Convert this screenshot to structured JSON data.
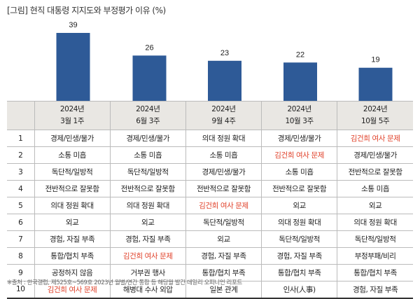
{
  "title": "[그림] 현직 대통령 지지도와 부정평가 이유 (%)",
  "chart_data": {
    "type": "bar",
    "title": "[그림] 현직 대통령 지지도와 부정평가 이유 (%)",
    "categories": [
      "2024년 3월 1주",
      "2024년 6월 3주",
      "2024년 9월 4주",
      "2024년 10월 3주",
      "2024년 10월 5주"
    ],
    "values": [
      39,
      26,
      23,
      22,
      19
    ],
    "color": "#2e5a97"
  },
  "table": {
    "headers": [
      {
        "year": "2024년",
        "week": "3월 1주"
      },
      {
        "year": "2024년",
        "week": "6월 3주"
      },
      {
        "year": "2024년",
        "week": "9월 4주"
      },
      {
        "year": "2024년",
        "week": "10월 3주"
      },
      {
        "year": "2024년",
        "week": "10월 5주"
      }
    ],
    "highlight_color": "#e0412a",
    "highlight_text": "김건희 여사 문제",
    "rows": [
      {
        "rank": "1",
        "cells": [
          "경제/민생/물가",
          "경제/민생/물가",
          "의대 정원 확대",
          "경제/민생/물가",
          "김건희 여사 문제"
        ]
      },
      {
        "rank": "2",
        "cells": [
          "소통 미흡",
          "소통 미흡",
          "소통 미흡",
          "김건희 여사 문제",
          "경제/민생/물가"
        ]
      },
      {
        "rank": "3",
        "cells": [
          "독단적/일방적",
          "독단적/일방적",
          "경제/민생/물가",
          "소통 미흡",
          "전반적으로 잘못함"
        ]
      },
      {
        "rank": "4",
        "cells": [
          "전반적으로 잘못함",
          "전반적으로 잘못함",
          "전반적으로 잘못함",
          "전반적으로 잘못함",
          "소통 미흡"
        ]
      },
      {
        "rank": "5",
        "cells": [
          "의대 정원 확대",
          "의대 정원 확대",
          "김건희 여사 문제",
          "외교",
          "외교"
        ]
      },
      {
        "rank": "6",
        "cells": [
          "외교",
          "외교",
          "독단적/일방적",
          "의대 정원 확대",
          "의대 정원 확대"
        ]
      },
      {
        "rank": "7",
        "cells": [
          "경험, 자질 부족",
          "경험, 자질 부족",
          "외교",
          "독단적/일방적",
          "독단적/일방적"
        ]
      },
      {
        "rank": "8",
        "cells": [
          "통합/협치 부족",
          "김건희 여사 문제",
          "경험, 자질 부족",
          "경험, 자질 부족",
          "부정부패/비리"
        ]
      },
      {
        "rank": "9",
        "cells": [
          "공정하지 않음",
          "거부권 행사",
          "통합/협치 부족",
          "통합/협치 부족",
          "통합/협치 부족"
        ]
      },
      {
        "rank": "10",
        "cells": [
          "김건희 여사 문제",
          "해병대 수사 외압",
          "일본 관계",
          "인사(人事)",
          "경험, 자질 부족"
        ]
      }
    ]
  },
  "source": "※출처 : 한국갤럽, 제525호~569호 2023년 월별/연간 통합 등 해당월 발간 데일리 오피니언 리포트"
}
